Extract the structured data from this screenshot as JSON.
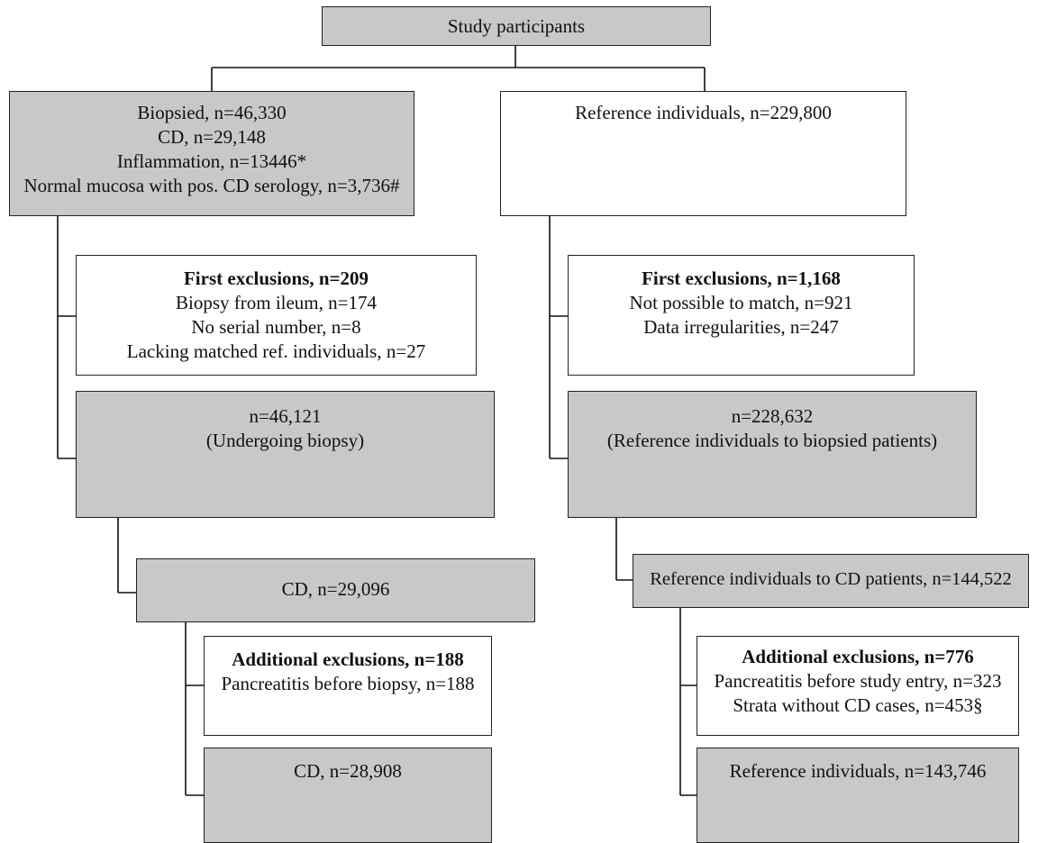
{
  "top": {
    "label": "Study participants"
  },
  "left": {
    "biopsied": {
      "lines": [
        "Biopsied, n=46,330",
        "CD, n=29,148",
        "Inflammation, n=13446*",
        "Normal mucosa with pos. CD serology, n=3,736#"
      ]
    },
    "first_exclusions": {
      "title": "First exclusions, n=209",
      "lines": [
        "Biopsy from ileum, n=174",
        "No serial number, n=8",
        "Lacking matched ref. individuals, n=27"
      ]
    },
    "after_first": {
      "lines": [
        "n=46,121",
        "(Undergoing biopsy)"
      ]
    },
    "cd": {
      "label": "CD, n=29,096"
    },
    "additional_exclusions": {
      "title": "Additional exclusions, n=188",
      "lines": [
        "Pancreatitis before biopsy, n=188"
      ]
    },
    "final": {
      "label": "CD, n=28,908"
    }
  },
  "right": {
    "reference": {
      "label": "Reference individuals, n=229,800"
    },
    "first_exclusions": {
      "title": "First exclusions, n=1,168",
      "lines": [
        "Not possible to match, n=921",
        "Data irregularities, n=247"
      ]
    },
    "after_first": {
      "lines": [
        "n=228,632",
        "(Reference individuals to biopsied patients)"
      ]
    },
    "cd_refs": {
      "label": "Reference individuals to CD patients, n=144,522"
    },
    "additional_exclusions": {
      "title": "Additional exclusions, n=776",
      "lines": [
        "Pancreatitis before study entry, n=323",
        "Strata without CD cases, n=453§"
      ]
    },
    "final": {
      "label": "Reference individuals, n=143,746"
    }
  }
}
